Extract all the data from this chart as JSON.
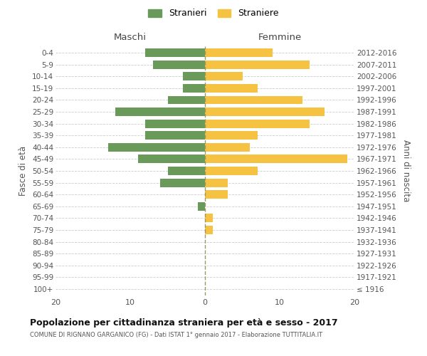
{
  "age_groups": [
    "100+",
    "95-99",
    "90-94",
    "85-89",
    "80-84",
    "75-79",
    "70-74",
    "65-69",
    "60-64",
    "55-59",
    "50-54",
    "45-49",
    "40-44",
    "35-39",
    "30-34",
    "25-29",
    "20-24",
    "15-19",
    "10-14",
    "5-9",
    "0-4"
  ],
  "birth_years": [
    "≤ 1916",
    "1917-1921",
    "1922-1926",
    "1927-1931",
    "1932-1936",
    "1937-1941",
    "1942-1946",
    "1947-1951",
    "1952-1956",
    "1957-1961",
    "1962-1966",
    "1967-1971",
    "1972-1976",
    "1977-1981",
    "1982-1986",
    "1987-1991",
    "1992-1996",
    "1997-2001",
    "2002-2006",
    "2007-2011",
    "2012-2016"
  ],
  "males": [
    0,
    0,
    0,
    0,
    0,
    0,
    0,
    1,
    0,
    6,
    5,
    9,
    13,
    8,
    8,
    12,
    5,
    3,
    3,
    7,
    8
  ],
  "females": [
    0,
    0,
    0,
    0,
    0,
    1,
    1,
    0,
    3,
    3,
    7,
    19,
    6,
    7,
    14,
    16,
    13,
    7,
    5,
    14,
    9
  ],
  "male_color": "#6a9a5a",
  "female_color": "#f5c242",
  "bar_height": 0.72,
  "xlim": 20,
  "title": "Popolazione per cittadinanza straniera per età e sesso - 2017",
  "subtitle": "COMUNE DI RIGNANO GARGANICO (FG) - Dati ISTAT 1° gennaio 2017 - Elaborazione TUTTITALIA.IT",
  "ylabel_left": "Fasce di età",
  "ylabel_right": "Anni di nascita",
  "legend_stranieri": "Stranieri",
  "legend_straniere": "Straniere",
  "maschi_label": "Maschi",
  "femmine_label": "Femmine",
  "bg_color": "#ffffff",
  "grid_color": "#cccccc",
  "dashed_line_color": "#999966"
}
